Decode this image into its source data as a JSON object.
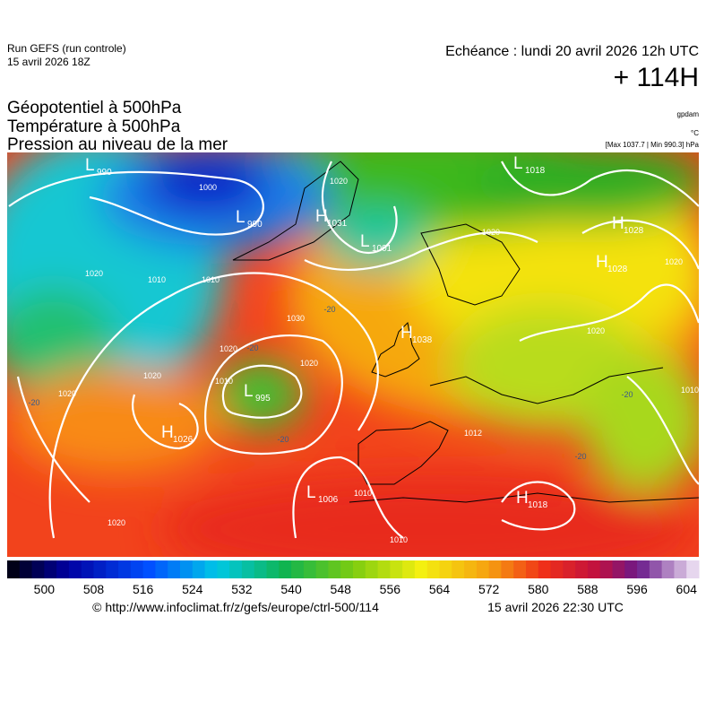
{
  "header": {
    "run": "Run GEFS (run controle)",
    "run_date": "15 avril 2026 18Z",
    "echeance": "Echéance : lundi 20 avril 2026 12h UTC",
    "lead": "+ 114H"
  },
  "titles": [
    "Géopotentiel à 500hPa",
    "Température à 500hPa",
    "Pression au niveau de la mer"
  ],
  "units": [
    "gpdam",
    "°C",
    "[Max 1037.7 | Min 990.3] hPa"
  ],
  "pressure_centers": [
    {
      "letter": "L",
      "value": 990
    },
    {
      "letter": "L",
      "value": 990
    },
    {
      "letter": "H",
      "value": 1031
    },
    {
      "letter": "L",
      "value": 1001
    },
    {
      "letter": "L",
      "value": 1018
    },
    {
      "letter": "H",
      "value": 1028
    },
    {
      "letter": "H",
      "value": 1028
    },
    {
      "letter": "H",
      "value": 1038
    },
    {
      "letter": "L",
      "value": 995
    },
    {
      "letter": "H",
      "value": 1026
    },
    {
      "letter": "L",
      "value": 1006
    },
    {
      "letter": "H",
      "value": 1018
    }
  ],
  "isobar_labels": [
    1020,
    1000,
    1020,
    1010,
    1010,
    1030,
    1020,
    1020,
    1010,
    1020,
    1020,
    1010,
    1010,
    1020,
    1020,
    1020,
    1020,
    1010,
    1012
  ],
  "temperature_labels": [
    -20,
    -20,
    -20,
    -20,
    -20,
    -20
  ],
  "colorbar": {
    "labels": [
      500,
      508,
      516,
      524,
      532,
      540,
      548,
      556,
      564,
      572,
      580,
      588,
      596,
      604
    ]
  },
  "footer": {
    "url": "© http://www.infoclimat.fr/z/gefs/europe/ctrl-500/114",
    "timestamp": "15 avril 2026 22:30 UTC"
  }
}
